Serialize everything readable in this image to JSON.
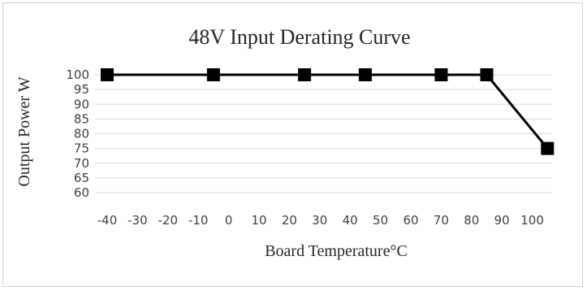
{
  "chart_data": {
    "type": "line",
    "title": "48V Input Derating Curve",
    "xlabel": "Board Temperature°C",
    "ylabel": "Output Power W",
    "x_ticks": [
      -40,
      -30,
      -20,
      -10,
      0,
      10,
      20,
      30,
      40,
      50,
      60,
      70,
      80,
      90,
      100
    ],
    "y_ticks": [
      60,
      65,
      70,
      75,
      80,
      85,
      90,
      95,
      100
    ],
    "xlim": [
      -40,
      100
    ],
    "ylim": [
      60,
      100
    ],
    "grid": true,
    "legend": "none",
    "series": [
      {
        "x": [
          -40,
          -5,
          25,
          45,
          70,
          85,
          105
        ],
        "y": [
          100,
          100,
          100,
          100,
          100,
          100,
          75
        ],
        "color": "#000000",
        "marker": "square"
      }
    ]
  }
}
